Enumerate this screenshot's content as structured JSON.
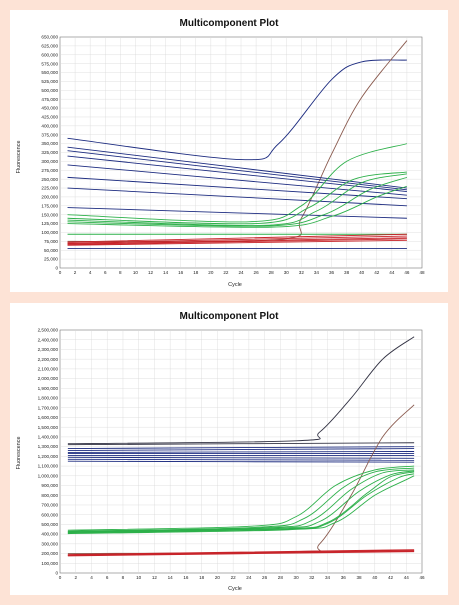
{
  "chart_data": [
    {
      "type": "line",
      "title": "Multicomponent Plot",
      "xlabel": "Cycle",
      "ylabel": "Fluorescence",
      "xlim": [
        0,
        48
      ],
      "ylim": [
        0,
        650000
      ],
      "grid": true,
      "x_ticks": [
        "0",
        "2",
        "4",
        "6",
        "8",
        "10",
        "12",
        "14",
        "16",
        "18",
        "20",
        "22",
        "24",
        "26",
        "28",
        "30",
        "32",
        "34",
        "36",
        "38",
        "40",
        "42",
        "44",
        "46",
        "48"
      ],
      "y_ticks": [
        "0",
        "25,000",
        "50,000",
        "75,000",
        "100,000",
        "125,000",
        "150,000",
        "175,000",
        "200,000",
        "225,000",
        "250,000",
        "275,000",
        "300,000",
        "325,000",
        "350,000",
        "375,000",
        "400,000",
        "425,000",
        "450,000",
        "475,000",
        "500,000",
        "525,000",
        "550,000",
        "575,000",
        "600,000",
        "625,000",
        "650,000"
      ],
      "series": [
        {
          "color": "#1d2c80",
          "values": [
            [
              1,
              365000
            ],
            [
              24,
              305000
            ],
            [
              29,
              350000
            ],
            [
              36,
              530000
            ],
            [
              40,
              580000
            ],
            [
              46,
              585000
            ]
          ]
        },
        {
          "color": "#8a5a4e",
          "values": [
            [
              1,
              75000
            ],
            [
              29,
              80000
            ],
            [
              32,
              140000
            ],
            [
              36,
              320000
            ],
            [
              40,
              480000
            ],
            [
              46,
              640000
            ]
          ]
        },
        {
          "color": "#1d2c80",
          "values": [
            [
              1,
              340000
            ],
            [
              46,
              225000
            ]
          ]
        },
        {
          "color": "#1d2c80",
          "values": [
            [
              1,
              330000
            ],
            [
              46,
              220000
            ]
          ]
        },
        {
          "color": "#1d2c80",
          "values": [
            [
              1,
              315000
            ],
            [
              46,
              215000
            ]
          ]
        },
        {
          "color": "#1d2c80",
          "values": [
            [
              1,
              290000
            ],
            [
              46,
              205000
            ]
          ]
        },
        {
          "color": "#1d2c80",
          "values": [
            [
              1,
              255000
            ],
            [
              46,
              195000
            ]
          ]
        },
        {
          "color": "#1d2c80",
          "values": [
            [
              1,
              225000
            ],
            [
              46,
              175000
            ]
          ]
        },
        {
          "color": "#1d2c80",
          "values": [
            [
              1,
              170000
            ],
            [
              46,
              140000
            ]
          ]
        },
        {
          "color": "#1d2c80",
          "values": [
            [
              1,
              55000
            ],
            [
              46,
              55000
            ]
          ]
        },
        {
          "color": "#2db04a",
          "values": [
            [
              1,
              150000
            ],
            [
              25,
              130000
            ],
            [
              32,
              175000
            ],
            [
              38,
              300000
            ],
            [
              46,
              350000
            ]
          ]
        },
        {
          "color": "#2db04a",
          "values": [
            [
              1,
              140000
            ],
            [
              26,
              125000
            ],
            [
              33,
              170000
            ],
            [
              39,
              250000
            ],
            [
              46,
              270000
            ]
          ]
        },
        {
          "color": "#2db04a",
          "values": [
            [
              1,
              135000
            ],
            [
              27,
              120000
            ],
            [
              34,
              160000
            ],
            [
              40,
              240000
            ],
            [
              46,
              265000
            ]
          ]
        },
        {
          "color": "#2db04a",
          "values": [
            [
              1,
              130000
            ],
            [
              27,
              118000
            ],
            [
              35,
              150000
            ],
            [
              41,
              220000
            ],
            [
              46,
              255000
            ]
          ]
        },
        {
          "color": "#2db04a",
          "values": [
            [
              1,
              125000
            ],
            [
              28,
              115000
            ],
            [
              36,
              145000
            ],
            [
              42,
              200000
            ],
            [
              46,
              230000
            ]
          ]
        },
        {
          "color": "#2db04a",
          "values": [
            [
              1,
              95000
            ],
            [
              46,
              95000
            ]
          ]
        },
        {
          "color": "#c8242a",
          "values": [
            [
              1,
              73000
            ],
            [
              46,
              95000
            ]
          ]
        },
        {
          "color": "#c8242a",
          "values": [
            [
              1,
              70000
            ],
            [
              46,
              90000
            ]
          ]
        },
        {
          "color": "#c8242a",
          "values": [
            [
              1,
              68000
            ],
            [
              46,
              85000
            ]
          ]
        },
        {
          "color": "#c8242a",
          "values": [
            [
              1,
              66000
            ],
            [
              46,
              82000
            ]
          ]
        },
        {
          "color": "#c8242a",
          "values": [
            [
              1,
              64000
            ],
            [
              46,
              78000
            ]
          ]
        }
      ]
    },
    {
      "type": "line",
      "title": "Multicomponent Plot",
      "xlabel": "Cycle",
      "ylabel": "Fluorescence",
      "xlim": [
        0,
        46
      ],
      "ylim": [
        0,
        2500000
      ],
      "grid": true,
      "x_ticks": [
        "0",
        "2",
        "4",
        "6",
        "8",
        "10",
        "12",
        "14",
        "16",
        "18",
        "20",
        "22",
        "24",
        "26",
        "28",
        "30",
        "32",
        "34",
        "36",
        "38",
        "40",
        "42",
        "44",
        "46"
      ],
      "y_ticks": [
        "0",
        "100,000",
        "200,000",
        "300,000",
        "400,000",
        "500,000",
        "600,000",
        "700,000",
        "800,000",
        "900,000",
        "1,000,000",
        "1,100,000",
        "1,200,000",
        "1,300,000",
        "1,400,000",
        "1,500,000",
        "1,600,000",
        "1,700,000",
        "1,800,000",
        "1,900,000",
        "2,000,000",
        "2,100,000",
        "2,200,000",
        "2,300,000",
        "2,400,000",
        "2,500,000"
      ],
      "series": [
        {
          "color": "#333344",
          "values": [
            [
              1,
              1330000
            ],
            [
              30,
              1360000
            ],
            [
              33,
              1450000
            ],
            [
              37,
              1800000
            ],
            [
              41,
              2200000
            ],
            [
              45,
              2430000
            ]
          ]
        },
        {
          "color": "#333344",
          "values": [
            [
              1,
              1320000
            ],
            [
              45,
              1340000
            ]
          ]
        },
        {
          "color": "#1d2c80",
          "values": [
            [
              1,
              1280000
            ],
            [
              45,
              1300000
            ]
          ]
        },
        {
          "color": "#1d2c80",
          "values": [
            [
              1,
              1260000
            ],
            [
              45,
              1280000
            ]
          ]
        },
        {
          "color": "#1d2c80",
          "values": [
            [
              1,
              1240000
            ],
            [
              45,
              1250000
            ]
          ]
        },
        {
          "color": "#1d2c80",
          "values": [
            [
              1,
              1230000
            ],
            [
              45,
              1230000
            ]
          ]
        },
        {
          "color": "#1d2c80",
          "values": [
            [
              1,
              1210000
            ],
            [
              45,
              1210000
            ]
          ]
        },
        {
          "color": "#1d2c80",
          "values": [
            [
              1,
              1190000
            ],
            [
              45,
              1180000
            ]
          ]
        },
        {
          "color": "#1d2c80",
          "values": [
            [
              1,
              1170000
            ],
            [
              45,
              1160000
            ]
          ]
        },
        {
          "color": "#1d2c80",
          "values": [
            [
              1,
              1150000
            ],
            [
              45,
              1140000
            ]
          ]
        },
        {
          "color": "#8a5a4e",
          "values": [
            [
              1,
              200000
            ],
            [
              30,
              220000
            ],
            [
              33,
              300000
            ],
            [
              37,
              800000
            ],
            [
              41,
              1400000
            ],
            [
              45,
              1730000
            ]
          ]
        },
        {
          "color": "#2db04a",
          "values": [
            [
              1,
              440000
            ],
            [
              24,
              480000
            ],
            [
              30,
              580000
            ],
            [
              35,
              900000
            ],
            [
              40,
              1060000
            ],
            [
              45,
              1100000
            ]
          ]
        },
        {
          "color": "#2db04a",
          "values": [
            [
              1,
              430000
            ],
            [
              25,
              470000
            ],
            [
              31,
              560000
            ],
            [
              36,
              880000
            ],
            [
              40,
              1040000
            ],
            [
              45,
              1080000
            ]
          ]
        },
        {
          "color": "#2db04a",
          "values": [
            [
              1,
              425000
            ],
            [
              26,
              465000
            ],
            [
              32,
              540000
            ],
            [
              37,
              860000
            ],
            [
              41,
              1030000
            ],
            [
              45,
              1060000
            ]
          ]
        },
        {
          "color": "#2db04a",
          "values": [
            [
              1,
              420000
            ],
            [
              27,
              460000
            ],
            [
              33,
              530000
            ],
            [
              38,
              840000
            ],
            [
              42,
              1010000
            ],
            [
              45,
              1050000
            ]
          ]
        },
        {
          "color": "#2db04a",
          "values": [
            [
              1,
              415000
            ],
            [
              28,
              455000
            ],
            [
              34,
              520000
            ],
            [
              39,
              820000
            ],
            [
              42,
              990000
            ],
            [
              45,
              1040000
            ]
          ]
        },
        {
          "color": "#2db04a",
          "values": [
            [
              1,
              410000
            ],
            [
              28,
              450000
            ],
            [
              34,
              510000
            ],
            [
              39,
              800000
            ],
            [
              43,
              980000
            ],
            [
              45,
              1020000
            ]
          ]
        },
        {
          "color": "#2db04a",
          "values": [
            [
              1,
              405000
            ],
            [
              29,
              445000
            ],
            [
              35,
              520000
            ],
            [
              40,
              800000
            ],
            [
              44,
              960000
            ],
            [
              45,
              1000000
            ]
          ]
        },
        {
          "color": "#c8242a",
          "values": [
            [
              1,
              190000
            ],
            [
              45,
              240000
            ]
          ]
        },
        {
          "color": "#c8242a",
          "values": [
            [
              1,
              185000
            ],
            [
              45,
              232000
            ]
          ]
        },
        {
          "color": "#c8242a",
          "values": [
            [
              1,
              180000
            ],
            [
              45,
              226000
            ]
          ]
        },
        {
          "color": "#c8242a",
          "values": [
            [
              1,
              176000
            ],
            [
              45,
              220000
            ]
          ]
        }
      ]
    }
  ]
}
